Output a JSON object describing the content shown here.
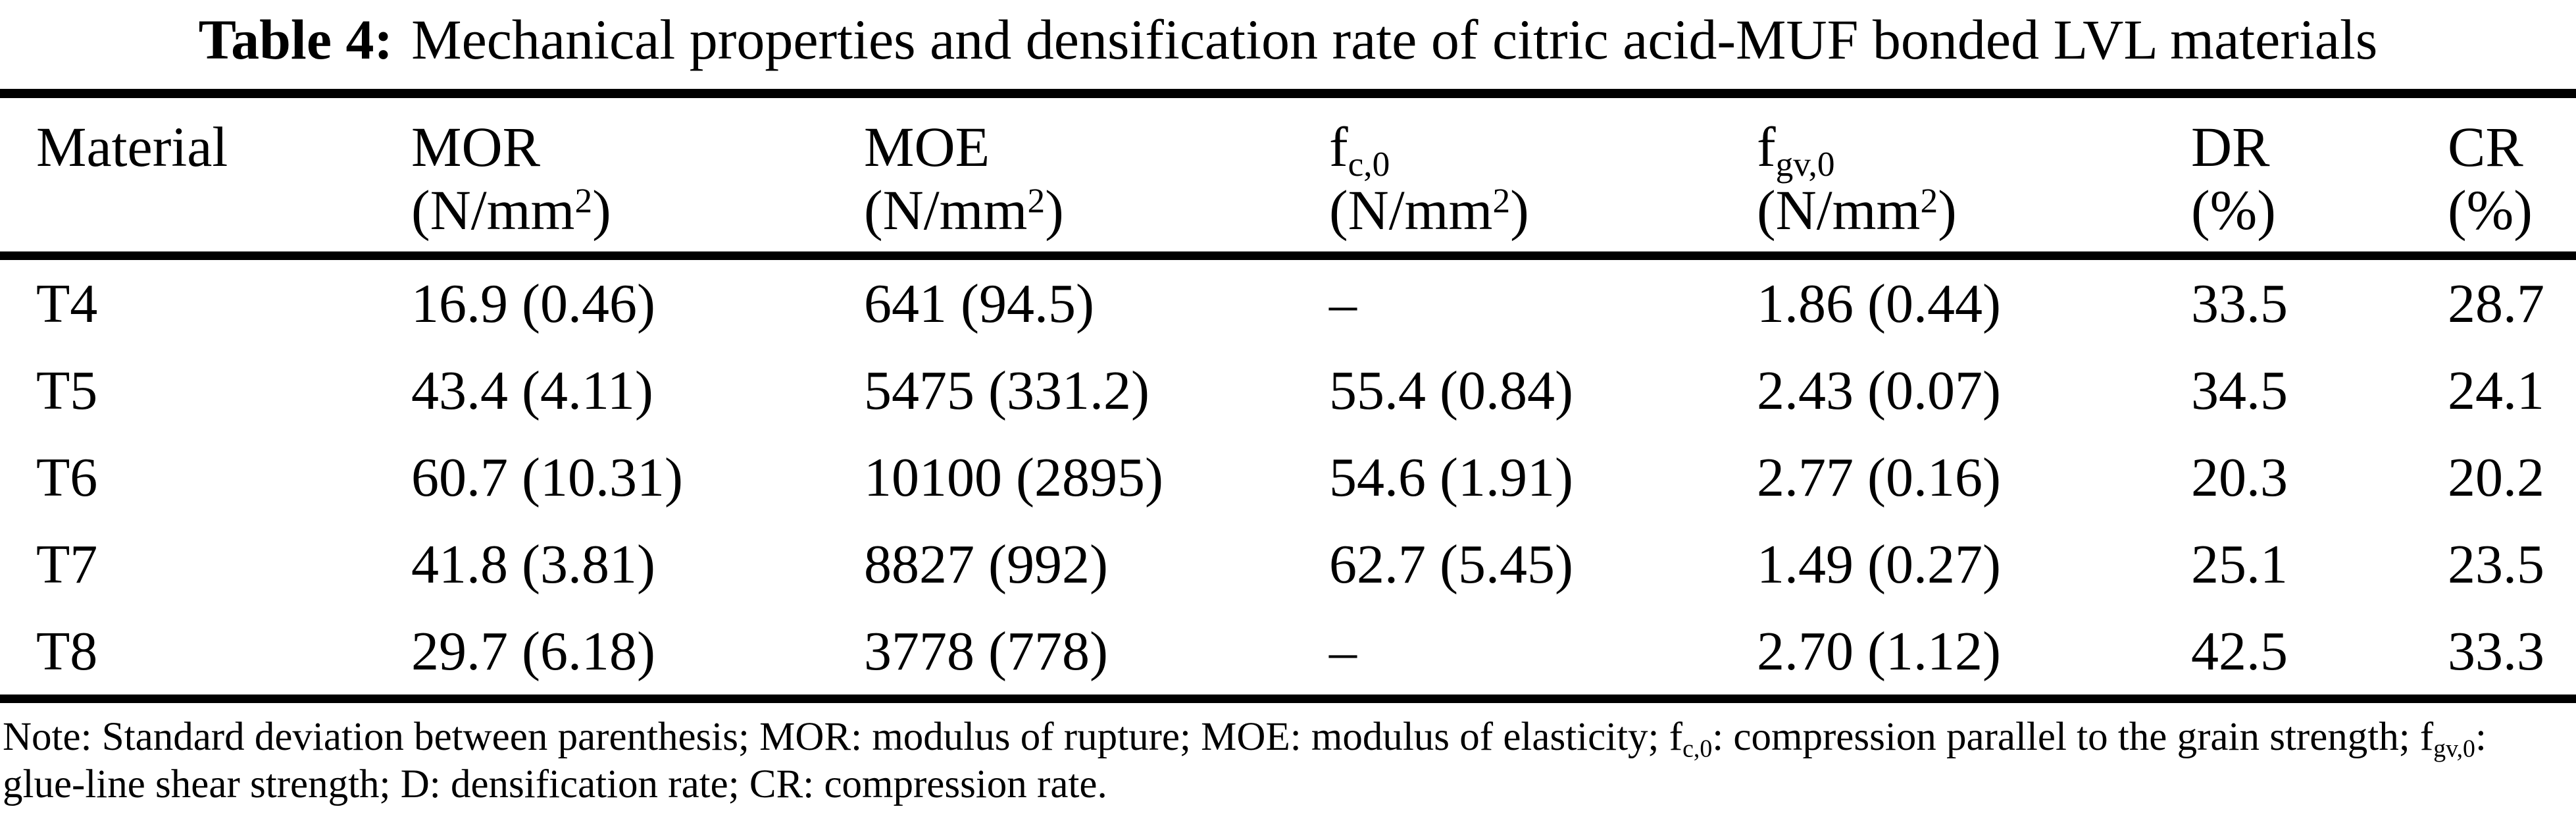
{
  "caption": {
    "label": "Table 4:",
    "text": "Mechanical properties and densification rate of citric acid-MUF bonded LVL materials"
  },
  "table": {
    "headers": [
      {
        "name": "Material",
        "sub": "",
        "unit_base": "",
        "unit_sup": "",
        "unit_close": ""
      },
      {
        "name": "MOR",
        "sub": "",
        "unit_base": "(N/mm",
        "unit_sup": "2",
        "unit_close": ")"
      },
      {
        "name": "MOE",
        "sub": "",
        "unit_base": "(N/mm",
        "unit_sup": "2",
        "unit_close": ")"
      },
      {
        "name": "f",
        "sub": "c,0",
        "unit_base": "(N/mm",
        "unit_sup": "2",
        "unit_close": ")"
      },
      {
        "name": "f",
        "sub": "gv,0",
        "unit_base": "(N/mm",
        "unit_sup": "2",
        "unit_close": ")"
      },
      {
        "name": "DR",
        "sub": "",
        "unit_base": "(%)",
        "unit_sup": "",
        "unit_close": ""
      },
      {
        "name": "CR",
        "sub": "",
        "unit_base": "(%)",
        "unit_sup": "",
        "unit_close": ""
      }
    ],
    "rows": [
      [
        "T4",
        "16.9 (0.46)",
        "641 (94.5)",
        "–",
        "1.86 (0.44)",
        "33.5",
        "28.7"
      ],
      [
        "T5",
        "43.4 (4.11)",
        "5475 (331.2)",
        "55.4 (0.84)",
        "2.43 (0.07)",
        "34.5",
        "24.1"
      ],
      [
        "T6",
        "60.7 (10.31)",
        "10100 (2895)",
        "54.6 (1.91)",
        "2.77 (0.16)",
        "20.3",
        "20.2"
      ],
      [
        "T7",
        "41.8 (3.81)",
        "8827 (992)",
        "62.7 (5.45)",
        "1.49 (0.27)",
        "25.1",
        "23.5"
      ],
      [
        "T8",
        "29.7 (6.18)",
        "3778 (778)",
        "–",
        "2.70 (1.12)",
        "42.5",
        "33.3"
      ]
    ]
  },
  "note": {
    "part1": "Note: Standard deviation between parenthesis; MOR: modulus of rupture; MOE: modulus of elasticity; f",
    "sub1": "c,0",
    "part2": ": compression parallel to the grain strength; f",
    "sub2": "gv,0",
    "part3": ": glue-line shear strength; D: densification rate; CR: compression rate."
  }
}
